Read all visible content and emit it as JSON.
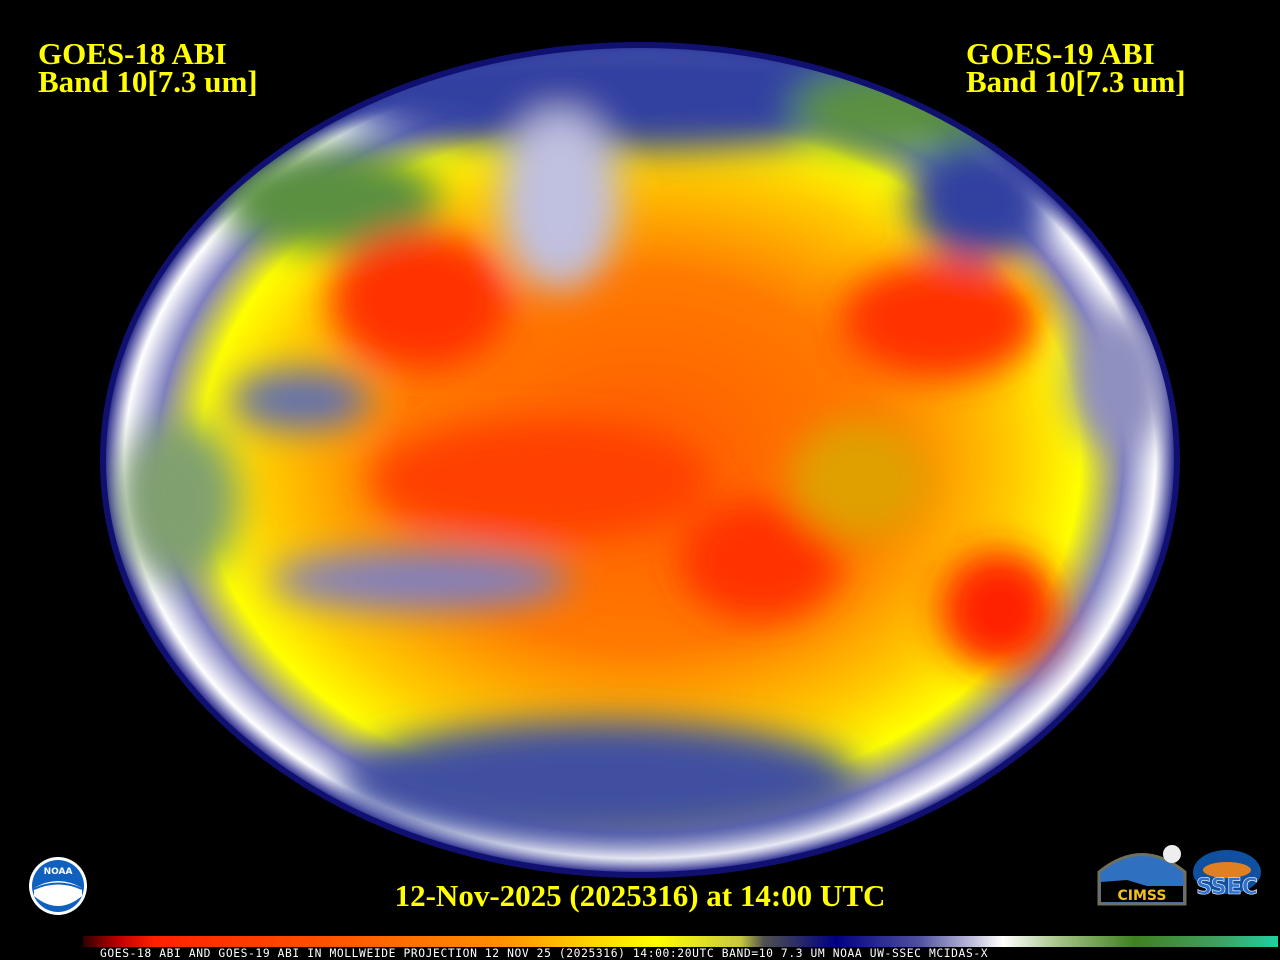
{
  "header": {
    "left": {
      "line1": "GOES-18 ABI",
      "line2": "Band 10[7.3 um]"
    },
    "right": {
      "line1": "GOES-19 ABI",
      "line2": "Band 10[7.3 um]"
    }
  },
  "timestamp": "12-Nov-2025 (2025316) at 14:00 UTC",
  "colorbar": {
    "caption": "GOES-18 ABI AND GOES-19 ABI IN MOLLWEIDE PROJECTION 12 NOV 25 (2025316) 14:00:20UTC BAND=10 7.3 UM NOAA UW-SSEC MCIDAS-X",
    "colors": [
      "#300000",
      "#ff2000",
      "#ff9000",
      "#ffff00",
      "#000080",
      "#ffffff",
      "#408020",
      "#20d0a0"
    ]
  },
  "logos": {
    "noaa": "NOAA",
    "cimss": "CIMSS",
    "ssec": "SSEC"
  }
}
